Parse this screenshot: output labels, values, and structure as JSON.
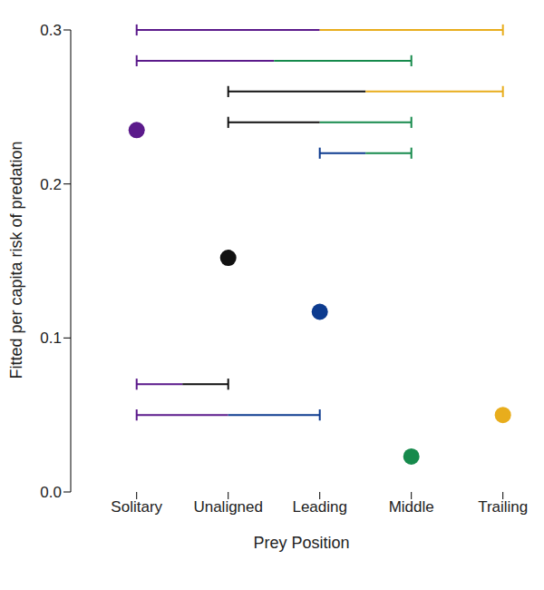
{
  "chart_data": {
    "type": "scatter",
    "x_label": "Prey Position",
    "y_label": "Fitted per capita risk of predation",
    "categories": [
      "Solitary",
      "Unaligned",
      "Leading",
      "Middle",
      "Trailing"
    ],
    "values": [
      0.235,
      0.152,
      0.117,
      0.023,
      0.05
    ],
    "colors": [
      "#5b1a8b",
      "#111111",
      "#0d3b8f",
      "#168a4c",
      "#e8ad1c"
    ],
    "ylim": [
      0,
      0.3
    ],
    "yticks": [
      {
        "value": 0,
        "label": "0.0"
      },
      0.1,
      0.2,
      0.3
    ],
    "comparisons": [
      {
        "from": "Solitary",
        "to": "Trailing",
        "y": 0.3
      },
      {
        "from": "Solitary",
        "to": "Middle",
        "y": 0.28
      },
      {
        "from": "Unaligned",
        "to": "Trailing",
        "y": 0.26
      },
      {
        "from": "Unaligned",
        "to": "Middle",
        "y": 0.24
      },
      {
        "from": "Leading",
        "to": "Middle",
        "y": 0.22
      },
      {
        "from": "Solitary",
        "to": "Unaligned",
        "y": 0.07
      },
      {
        "from": "Solitary",
        "to": "Leading",
        "y": 0.05
      }
    ]
  }
}
